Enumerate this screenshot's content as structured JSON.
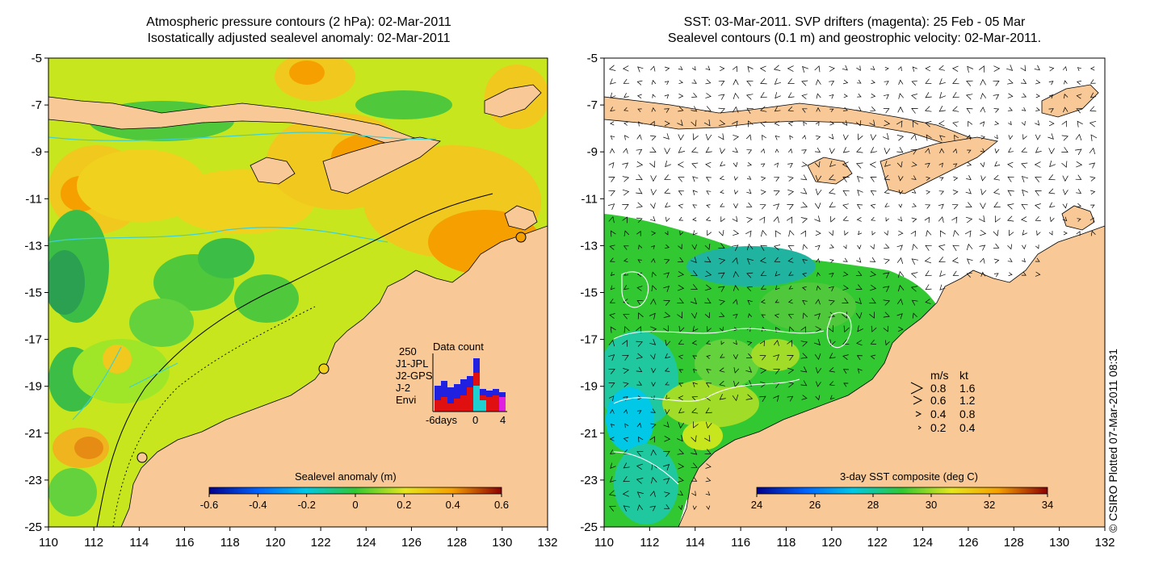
{
  "left_panel": {
    "title_line1": "Atmospheric pressure contours (2 hPa): 02-Mar-2011",
    "title_line2": "Isostatically adjusted sealevel anomaly: 02-Mar-2011",
    "colorbar_label": "Sealevel anomaly (m)",
    "colorbar_ticks": [
      "-0.6",
      "-0.4",
      "-0.2",
      "0",
      "0.2",
      "0.4",
      "0.6"
    ],
    "inset": {
      "title": "Data count",
      "ymax_label": "250",
      "legend": [
        {
          "name": "J1-JPL",
          "color": "#2020e0"
        },
        {
          "name": "J2-GPS",
          "color": "#e020e0"
        },
        {
          "name": "J-2",
          "color": "#e01010"
        },
        {
          "name": "Envi",
          "color": "#20d0d0"
        }
      ],
      "x_labels": [
        "-6days",
        "0",
        "4"
      ]
    }
  },
  "right_panel": {
    "title_line1": "SST: 03-Mar-2011. SVP drifters (magenta): 25 Feb - 05 Mar",
    "title_line2": "Sealevel contours (0.1 m) and geostrophic velocity: 02-Mar-2011.",
    "colorbar_label": "3-day SST composite (deg C)",
    "colorbar_ticks": [
      "24",
      "26",
      "28",
      "30",
      "32",
      "34"
    ],
    "speed_legend": {
      "header_ms": "m/s",
      "header_kt": "kt",
      "rows": [
        {
          "ms": "0.8",
          "kt": "1.6"
        },
        {
          "ms": "0.6",
          "kt": "1.2"
        },
        {
          "ms": "0.4",
          "kt": "0.8"
        },
        {
          "ms": "0.2",
          "kt": "0.4"
        }
      ]
    }
  },
  "axes": {
    "x_ticks": [
      "110",
      "112",
      "114",
      "116",
      "118",
      "120",
      "122",
      "124",
      "126",
      "128",
      "130",
      "132"
    ],
    "y_ticks": [
      "-5",
      "-7",
      "-9",
      "-11",
      "-13",
      "-15",
      "-17",
      "-19",
      "-21",
      "-23",
      "-25"
    ],
    "lon_range": [
      110,
      132
    ],
    "lat_range": [
      -25,
      -5
    ]
  },
  "credit": "© CSIRO Plotted 07-Mar-2011 08:31",
  "colors": {
    "land": "#f8c896",
    "sealevel_scale": [
      "#00008c",
      "#0064ff",
      "#00c8e6",
      "#32c832",
      "#e6e61e",
      "#f5a000",
      "#8c0000"
    ],
    "sst_scale": [
      "#00008c",
      "#0064ff",
      "#00c8e6",
      "#32c832",
      "#e6e61e",
      "#f5a000",
      "#8c0000"
    ]
  }
}
